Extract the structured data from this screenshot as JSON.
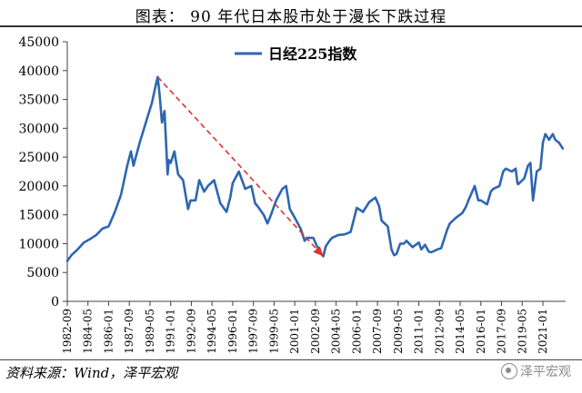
{
  "title": "图表：  90 年代日本股市处于漫长下跌过程",
  "source": "资料来源：Wind，泽平宏观",
  "watermark": "泽平宏观",
  "colors": {
    "line": "#2e66b0",
    "arrow": "#e03030",
    "axis": "#404040"
  },
  "chart_data": {
    "type": "line",
    "title": "图表：  90 年代日本股市处于漫长下跌过程",
    "xlabel": "",
    "ylabel": "",
    "ylim": [
      0,
      45000
    ],
    "yticks": [
      0,
      5000,
      10000,
      15000,
      20000,
      25000,
      30000,
      35000,
      40000,
      45000
    ],
    "xlim": [
      1982.667,
      2022.833
    ],
    "xtick_labels": [
      "1982-09",
      "1984-05",
      "1986-01",
      "1987-09",
      "1989-05",
      "1991-01",
      "1992-09",
      "1994-05",
      "1996-01",
      "1997-09",
      "1999-05",
      "2001-01",
      "2002-09",
      "2004-05",
      "2006-01",
      "2007-09",
      "2009-05",
      "2011-01",
      "2012-09",
      "2014-05",
      "2016-01",
      "2017-09",
      "2019-05",
      "2021-01"
    ],
    "legend": {
      "position": "top-center",
      "label": "日经225指数"
    },
    "series": [
      {
        "name": "日经225指数",
        "x": [
          1982.67,
          1983.0,
          1983.5,
          1984.0,
          1984.5,
          1985.0,
          1985.5,
          1986.0,
          1986.5,
          1987.0,
          1987.5,
          1987.8,
          1988.0,
          1988.5,
          1989.0,
          1989.5,
          1989.8,
          1989.95,
          1990.1,
          1990.3,
          1990.5,
          1990.75,
          1990.85,
          1991.0,
          1991.3,
          1991.6,
          1992.0,
          1992.4,
          1992.6,
          1993.0,
          1993.3,
          1993.7,
          1994.0,
          1994.5,
          1995.0,
          1995.5,
          1995.8,
          1996.0,
          1996.5,
          1997.0,
          1997.5,
          1997.8,
          1998.0,
          1998.5,
          1998.8,
          1999.0,
          1999.5,
          2000.0,
          2000.3,
          2000.6,
          2001.0,
          2001.5,
          2001.8,
          2002.0,
          2002.5,
          2002.8,
          2003.0,
          2003.3,
          2003.5,
          2003.8,
          2004.0,
          2004.5,
          2005.0,
          2005.5,
          2005.8,
          2006.0,
          2006.5,
          2007.0,
          2007.5,
          2007.8,
          2008.0,
          2008.5,
          2008.8,
          2009.0,
          2009.2,
          2009.5,
          2009.8,
          2010.0,
          2010.5,
          2011.0,
          2011.2,
          2011.5,
          2011.8,
          2012.0,
          2012.5,
          2012.8,
          2013.0,
          2013.3,
          2013.5,
          2014.0,
          2014.5,
          2014.8,
          2015.0,
          2015.5,
          2015.8,
          2016.0,
          2016.5,
          2016.8,
          2017.0,
          2017.5,
          2017.8,
          2018.0,
          2018.5,
          2018.8,
          2018.95,
          2019.0,
          2019.5,
          2019.8,
          2020.0,
          2020.2,
          2020.5,
          2020.8,
          2021.0,
          2021.2,
          2021.5,
          2021.8,
          2022.0,
          2022.3,
          2022.6
        ],
        "values": [
          7000,
          8000,
          9000,
          10200,
          10800,
          11500,
          12600,
          13000,
          15500,
          18500,
          23500,
          26000,
          23500,
          27500,
          31000,
          34500,
          37500,
          38900,
          36000,
          31000,
          33000,
          22000,
          24500,
          24000,
          26000,
          22000,
          21000,
          16000,
          17500,
          17500,
          21000,
          19000,
          20000,
          21000,
          17000,
          15500,
          18000,
          20500,
          22500,
          19500,
          20000,
          17000,
          16500,
          15000,
          13500,
          14500,
          17500,
          19500,
          20000,
          16000,
          14500,
          12500,
          10500,
          11000,
          11000,
          9500,
          8600,
          7800,
          9500,
          10500,
          11000,
          11500,
          11600,
          12000,
          14500,
          16200,
          15500,
          17200,
          18000,
          16500,
          14000,
          13000,
          9000,
          8000,
          8200,
          10000,
          10000,
          10500,
          9400,
          10200,
          9000,
          9800,
          8600,
          8500,
          9000,
          9200,
          10500,
          12500,
          13500,
          14500,
          15300,
          16400,
          17500,
          20000,
          17500,
          17500,
          16800,
          19000,
          19500,
          20000,
          22500,
          23000,
          22500,
          23000,
          20500,
          20300,
          21300,
          23500,
          24000,
          17500,
          22500,
          23000,
          27500,
          29000,
          28000,
          29000,
          28000,
          27500,
          26500
        ]
      }
    ],
    "annotation": {
      "type": "arrow",
      "from": {
        "x": 1989.95,
        "y": 38900
      },
      "to": {
        "x": 2003.3,
        "y": 7800
      },
      "style": "dashed"
    }
  }
}
